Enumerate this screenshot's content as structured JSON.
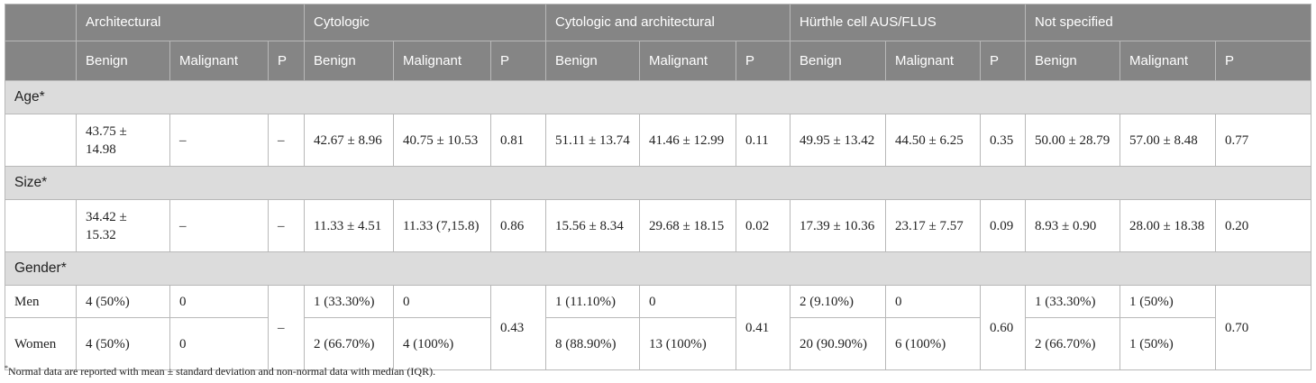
{
  "groups": [
    "Architectural",
    "Cytologic",
    "Cytologic and architectural",
    "Hürthle cell AUS/FLUS",
    "Not specified"
  ],
  "subheaders": {
    "benign": "Benign",
    "malignant": "Malignant",
    "p": "P"
  },
  "sections": {
    "age": "Age*",
    "size": "Size*",
    "gender": "Gender*"
  },
  "age": [
    [
      "43.75 ± 14.98",
      "–",
      "–"
    ],
    [
      "42.67 ± 8.96",
      "40.75 ± 10.53",
      "0.81"
    ],
    [
      "51.11 ± 13.74",
      "41.46 ± 12.99",
      "0.11"
    ],
    [
      "49.95 ± 13.42",
      "44.50 ± 6.25",
      "0.35"
    ],
    [
      "50.00 ± 28.79",
      "57.00 ± 8.48",
      "0.77"
    ]
  ],
  "size": [
    [
      "34.42 ± 15.32",
      "–",
      "–"
    ],
    [
      "11.33 ± 4.51",
      "11.33 (7,15.8)",
      "0.86"
    ],
    [
      "15.56 ± 8.34",
      "29.68 ± 18.15",
      "0.02"
    ],
    [
      "17.39 ± 10.36",
      "23.17 ± 7.57",
      "0.09"
    ],
    [
      "8.93 ± 0.90",
      "28.00 ± 18.38",
      "0.20"
    ]
  ],
  "gender": {
    "men_label": "Men",
    "women_label": "Women",
    "men": [
      [
        "4 (50%)",
        "0"
      ],
      [
        "1 (33.30%)",
        "0"
      ],
      [
        "1 (11.10%)",
        "0"
      ],
      [
        "2 (9.10%)",
        "0"
      ],
      [
        "1 (33.30%)",
        "1 (50%)"
      ]
    ],
    "women": [
      [
        "4 (50%)",
        "0"
      ],
      [
        "2 (66.70%)",
        "4 (100%)"
      ],
      [
        "8 (88.90%)",
        "13 (100%)"
      ],
      [
        "20 (90.90%)",
        "6 (100%)"
      ],
      [
        "2 (66.70%)",
        "1 (50%)"
      ]
    ],
    "p": [
      "–",
      "0.43",
      "0.41",
      "0.60",
      "0.70"
    ]
  },
  "footnote": {
    "mark": "*",
    "text": "Normal data are reported with mean ± standard deviation and non-normal data with median (IQR)."
  }
}
